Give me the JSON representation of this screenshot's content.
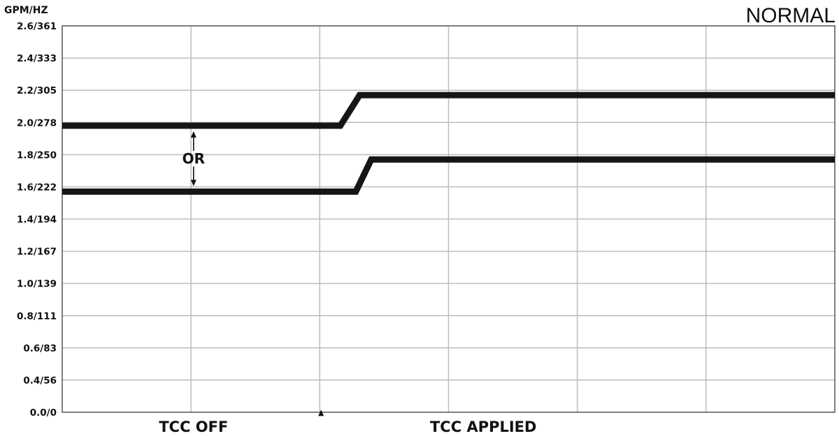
{
  "mode_label": "NORMAL",
  "chart_data": {
    "type": "line",
    "ylabel": "GPM/HZ",
    "y_ticks": [
      "0.0/0",
      "0.4/56",
      "0.6/83",
      "0.8/111",
      "1.0/139",
      "1.2/167",
      "1.4/194",
      "1.6/222",
      "1.8/250",
      "2.0/278",
      "2.2/305",
      "2.4/333",
      "2.6/361"
    ],
    "ylim": [
      0,
      12
    ],
    "x_labels": [
      "TCC OFF",
      "TCC APPLIED"
    ],
    "grid": true,
    "legend": "none",
    "series": [
      {
        "points": [
          [
            0.0,
            8.9
          ],
          [
            0.36,
            8.9
          ],
          [
            0.385,
            9.85
          ],
          [
            1.0,
            9.85
          ]
        ]
      },
      {
        "points": [
          [
            0.0,
            6.85
          ],
          [
            0.38,
            6.85
          ],
          [
            0.4,
            7.85
          ],
          [
            1.0,
            7.85
          ]
        ]
      }
    ],
    "annotations": [
      {
        "text": "OR",
        "type": "double-arrow",
        "x": 0.17,
        "y_from": 6.85,
        "y_to": 8.9
      },
      {
        "text": "",
        "type": "up-arrow",
        "x": 0.335,
        "y_from": 0.0,
        "y_to": 0.6
      }
    ]
  }
}
